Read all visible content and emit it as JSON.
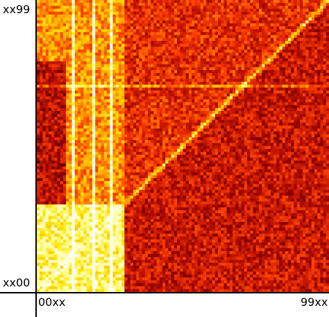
{
  "chart_data": {
    "type": "heatmap",
    "title": "",
    "xlabel": "",
    "ylabel": "",
    "x_ticks": [
      "00xx",
      "99xx"
    ],
    "y_ticks": [
      "xx00",
      "xx99"
    ],
    "grid": false,
    "legend": "none",
    "colormap": "hot",
    "colormap_stops": [
      "#000000",
      "#8b0000",
      "#cc1a00",
      "#ff4400",
      "#ffa500",
      "#ffe600",
      "#ffffa0",
      "#ffffff"
    ],
    "rows": 100,
    "cols": 100,
    "regions": [
      {
        "name": "upper-left block (x 00-09, y 30-78)",
        "mean_value": 0.25
      },
      {
        "name": "left bright column band (x 00-30)",
        "mean_value": 0.55
      },
      {
        "name": "lower-left bright block (x 00-30, y 00-30)",
        "mean_value": 0.8
      },
      {
        "name": "diagonal line",
        "mean_value": 0.7
      },
      {
        "name": "upper triangle above diagonal",
        "mean_value": 0.35
      },
      {
        "name": "lower triangle below diagonal",
        "mean_value": 0.28
      }
    ],
    "bright_columns": [
      12,
      19,
      25
    ],
    "bright_row": 70
  }
}
